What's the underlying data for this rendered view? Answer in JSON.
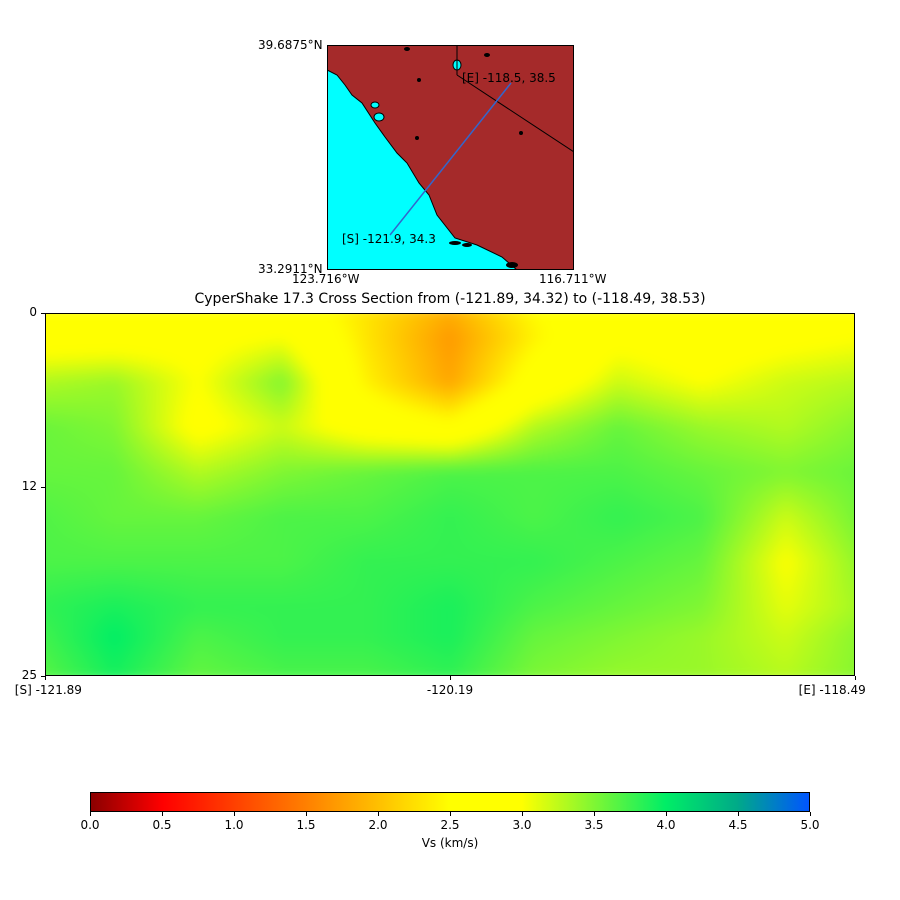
{
  "map": {
    "lat_top": "39.6875°N",
    "lat_bottom": "33.2911°N",
    "lon_left": "123.716°W",
    "lon_right": "116.711°W",
    "start_label": "[S] -121.9, 34.3",
    "end_label": "[E] -118.5, 38.5",
    "land_color": "#a52a2a",
    "water_color": "#00ffff",
    "line_color": "#3366cc"
  },
  "chart_data": {
    "type": "heatmap",
    "title": "CyperShake 17.3 Cross Section from (-121.89, 34.32) to (-118.49, 38.53)",
    "x_tick_labels": [
      "[S] -121.89",
      "-120.19",
      "[E] -118.49"
    ],
    "x_ticks": [
      -121.89,
      -120.19,
      -118.49
    ],
    "xlim": [
      -121.89,
      -118.49
    ],
    "y_tick_labels": [
      "0",
      "12",
      "25"
    ],
    "y_ticks": [
      0,
      12,
      25
    ],
    "ylim": [
      0,
      25
    ],
    "y_inverted": true,
    "colorbar": {
      "label": "Vs (km/s)",
      "range": [
        0.0,
        5.0
      ],
      "tick_labels": [
        "0.0",
        "0.5",
        "1.0",
        "1.5",
        "2.0",
        "2.5",
        "3.0",
        "3.5",
        "4.0",
        "4.5",
        "5.0"
      ],
      "ticks": [
        0.0,
        0.5,
        1.0,
        1.5,
        2.0,
        2.5,
        3.0,
        3.5,
        4.0,
        4.5,
        5.0
      ],
      "colors": [
        [
          0.0,
          "#8b0000"
        ],
        [
          0.5,
          "#ff0000"
        ],
        [
          1.5,
          "#ff8000"
        ],
        [
          2.5,
          "#ffff00"
        ],
        [
          3.0,
          "#ffff00"
        ],
        [
          4.0,
          "#00ee66"
        ],
        [
          4.5,
          "#00aa88"
        ],
        [
          5.0,
          "#0055ff"
        ]
      ]
    },
    "depth_rows": [
      0,
      2,
      5,
      8,
      11,
      14,
      17,
      20,
      22,
      25
    ],
    "columns_x": [
      -121.89,
      -121.55,
      -121.21,
      -120.87,
      -120.53,
      -120.19,
      -119.85,
      -119.51,
      -119.17,
      -118.83,
      -118.49
    ],
    "vs_grid": [
      [
        2.8,
        2.8,
        2.7,
        2.7,
        2.3,
        1.9,
        2.5,
        2.8,
        2.8,
        2.8,
        2.8
      ],
      [
        2.8,
        2.8,
        2.9,
        3.0,
        2.3,
        1.7,
        2.4,
        2.9,
        2.8,
        2.9,
        3.0
      ],
      [
        3.3,
        3.4,
        3.0,
        3.5,
        2.4,
        1.8,
        2.7,
        3.2,
        3.0,
        3.2,
        3.3
      ],
      [
        3.6,
        3.5,
        2.9,
        3.2,
        2.8,
        2.6,
        3.3,
        3.6,
        3.4,
        3.3,
        3.5
      ],
      [
        3.6,
        3.6,
        3.3,
        3.5,
        3.6,
        3.7,
        3.7,
        3.7,
        3.6,
        3.5,
        3.6
      ],
      [
        3.7,
        3.6,
        3.6,
        3.7,
        3.7,
        3.8,
        3.7,
        3.8,
        3.7,
        3.2,
        3.6
      ],
      [
        3.7,
        3.7,
        3.7,
        3.7,
        3.8,
        3.8,
        3.8,
        3.7,
        3.6,
        3.0,
        3.5
      ],
      [
        3.8,
        3.9,
        3.8,
        3.8,
        3.8,
        3.9,
        3.7,
        3.6,
        3.5,
        3.1,
        3.4
      ],
      [
        3.7,
        4.0,
        3.7,
        3.8,
        3.8,
        3.9,
        3.6,
        3.5,
        3.4,
        3.2,
        3.5
      ],
      [
        3.6,
        3.9,
        3.6,
        3.7,
        3.7,
        3.8,
        3.5,
        3.4,
        3.4,
        3.3,
        3.5
      ]
    ]
  }
}
